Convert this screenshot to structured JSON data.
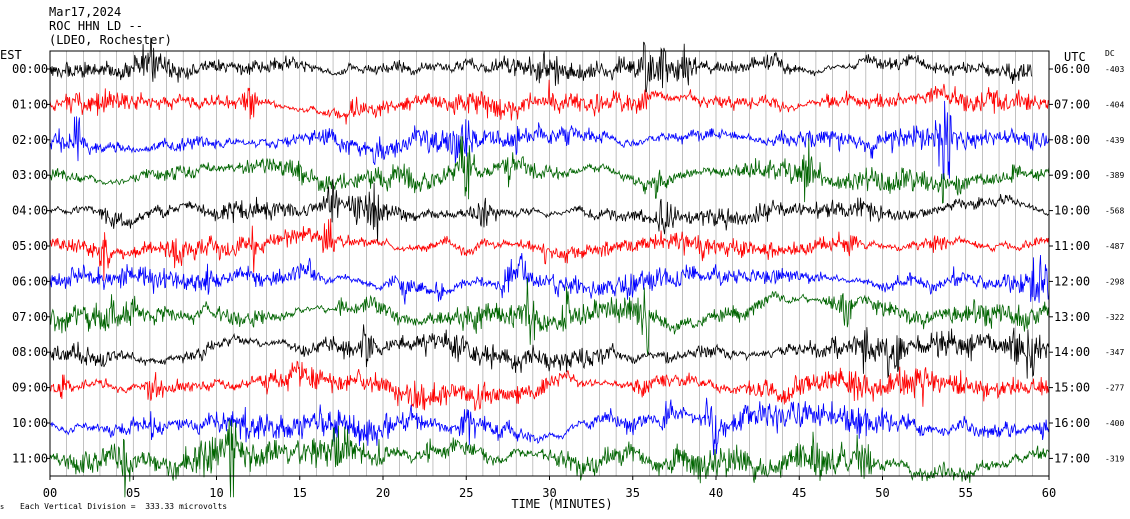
{
  "header": {
    "date": "Mar17,2024",
    "station": "ROC HHN LD --",
    "network": "(LDEO, Rochester)"
  },
  "left_axis_title": "EST",
  "right_axis_title": "UTC",
  "dc_title": "DC",
  "footer": {
    "scale_note": "Each Vertical Division =  333.33 microvolts",
    "corner_mark": "s"
  },
  "chart_data": {
    "type": "line",
    "xlabel": "TIME (MINUTES)",
    "ylabel_left": "EST",
    "ylabel_right": "UTC",
    "xlim": [
      0,
      60
    ],
    "x_ticks": [
      "00",
      "05",
      "10",
      "15",
      "20",
      "25",
      "30",
      "35",
      "40",
      "45",
      "50",
      "55",
      "60"
    ],
    "grid": "vertical minute gridlines",
    "series": [
      {
        "est": "00:00",
        "utc": "06:00",
        "dc": "-403",
        "color": "#000000",
        "end_minute": 59,
        "amplitude": 0.55
      },
      {
        "est": "01:00",
        "utc": "07:00",
        "dc": "-404",
        "color": "#ff0000",
        "end_minute": 60,
        "amplitude": 0.55
      },
      {
        "est": "02:00",
        "utc": "08:00",
        "dc": "-439",
        "color": "#0000ff",
        "end_minute": 60,
        "amplitude": 0.6
      },
      {
        "est": "03:00",
        "utc": "09:00",
        "dc": "-389",
        "color": "#006400",
        "end_minute": 60,
        "amplitude": 0.6
      },
      {
        "est": "04:00",
        "utc": "10:00",
        "dc": "-568",
        "color": "#000000",
        "end_minute": 60,
        "amplitude": 0.5
      },
      {
        "est": "05:00",
        "utc": "11:00",
        "dc": "-487",
        "color": "#ff0000",
        "end_minute": 60,
        "amplitude": 0.55
      },
      {
        "est": "06:00",
        "utc": "12:00",
        "dc": "-298",
        "color": "#0000ff",
        "end_minute": 60,
        "amplitude": 0.6
      },
      {
        "est": "07:00",
        "utc": "13:00",
        "dc": "-322",
        "color": "#006400",
        "end_minute": 60,
        "amplitude": 0.65
      },
      {
        "est": "08:00",
        "utc": "14:00",
        "dc": "-347",
        "color": "#000000",
        "end_minute": 60,
        "amplitude": 0.6
      },
      {
        "est": "09:00",
        "utc": "15:00",
        "dc": "-277",
        "color": "#ff0000",
        "end_minute": 60,
        "amplitude": 0.65
      },
      {
        "est": "10:00",
        "utc": "16:00",
        "dc": "-400",
        "color": "#0000ff",
        "end_minute": 60,
        "amplitude": 0.7
      },
      {
        "est": "11:00",
        "utc": "17:00",
        "dc": "-319",
        "color": "#006400",
        "end_minute": 60,
        "amplitude": 0.8
      }
    ]
  }
}
